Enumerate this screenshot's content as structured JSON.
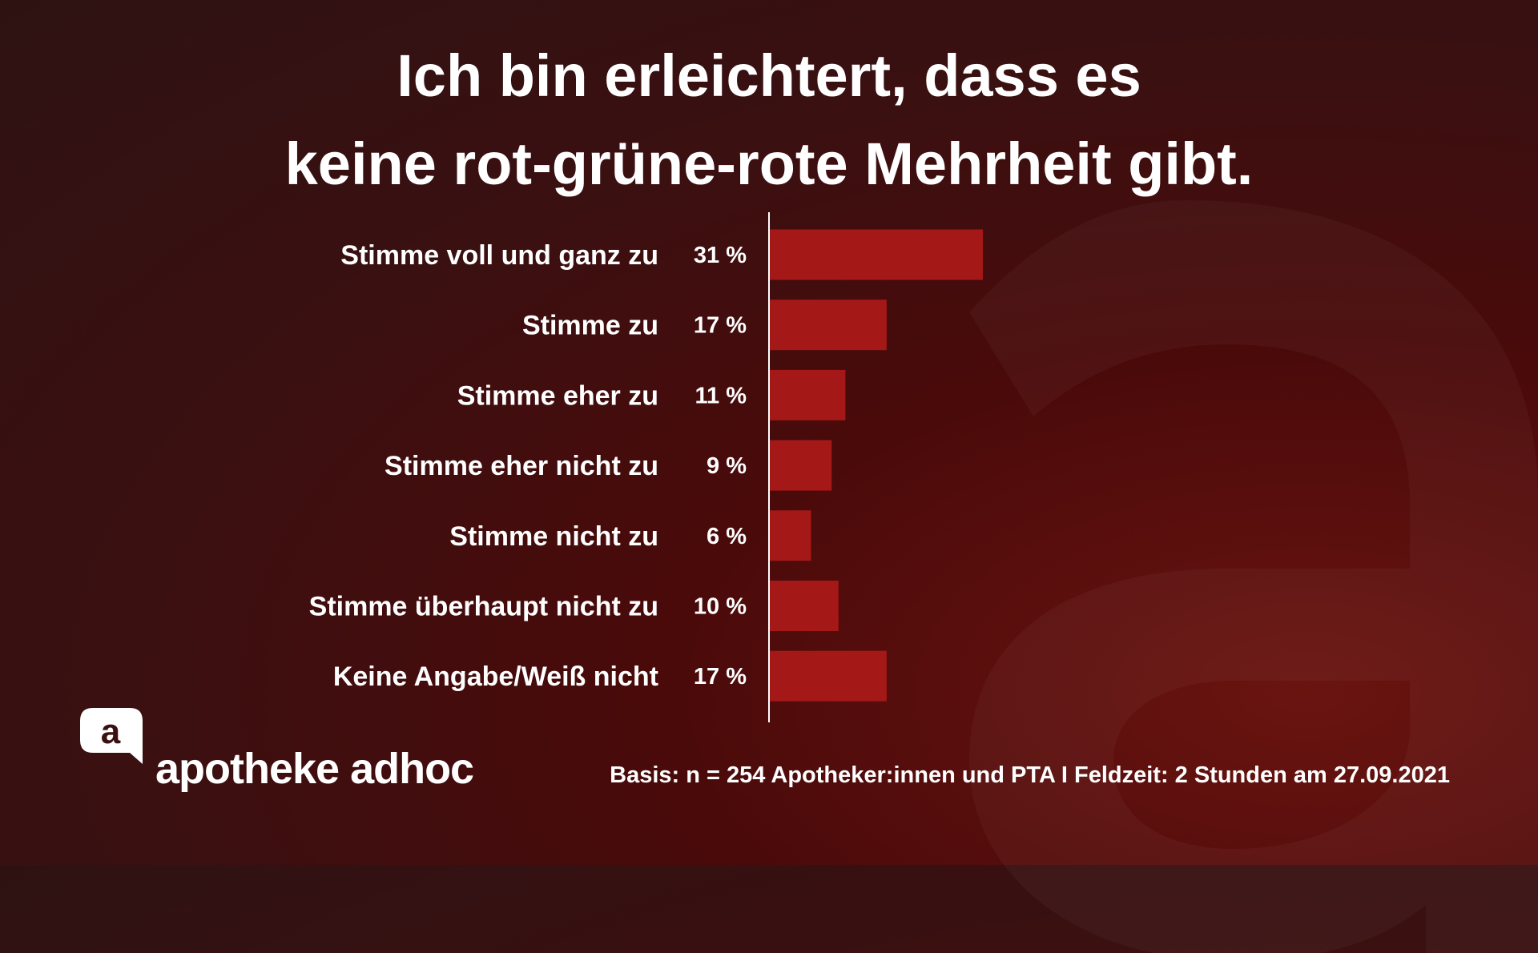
{
  "title_line1": "Ich bin erleichtert, dass es",
  "title_line2": "keine rot-grüne-rote Mehrheit gibt.",
  "chart_data": {
    "type": "bar",
    "orientation": "horizontal",
    "categories": [
      "Stimme voll und ganz zu",
      "Stimme zu",
      "Stimme eher zu",
      "Stimme eher nicht zu",
      "Stimme nicht zu",
      "Stimme überhaupt nicht zu",
      "Keine Angabe/Weiß nicht"
    ],
    "values": [
      31,
      17,
      11,
      9,
      6,
      10,
      17
    ],
    "value_labels": [
      "31 %",
      "17 %",
      "11 %",
      "9 %",
      "6 %",
      "10 %",
      "17 %"
    ],
    "unit": "%",
    "xlim": [
      0,
      100
    ],
    "grid": false,
    "bar_color": "#a41818"
  },
  "brand": {
    "name": "apotheke adhoc",
    "logo_icon": "speech-bubble-a-icon"
  },
  "footnote": "Basis: n = 254 Apotheker:innen und PTA I Feldzeit: 2 Stunden am 27.09.2021",
  "colors": {
    "bar": "#a41818",
    "text": "#ffffff"
  }
}
